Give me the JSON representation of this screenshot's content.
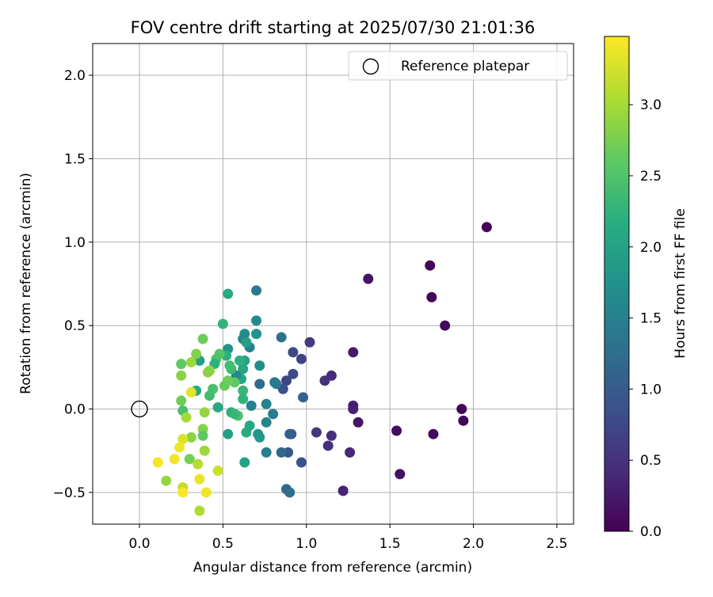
{
  "chart_data": {
    "type": "scatter",
    "title": "FOV centre drift starting at 2025/07/30 21:01:36",
    "xlabel": "Angular distance from reference (arcmin)",
    "ylabel": "Rotation from reference (arcmin)",
    "xlim": [
      -0.28,
      2.6
    ],
    "ylim": [
      -0.69,
      2.19
    ],
    "xticks": [
      0.0,
      0.5,
      1.0,
      1.5,
      2.0,
      2.5
    ],
    "xtick_labels": [
      "0.0",
      "0.5",
      "1.0",
      "1.5",
      "2.0",
      "2.5"
    ],
    "yticks": [
      -0.5,
      0.0,
      0.5,
      1.0,
      1.5,
      2.0
    ],
    "ytick_labels": [
      "−0.5",
      "0.0",
      "0.5",
      "1.0",
      "1.5",
      "2.0"
    ],
    "grid": true,
    "legend": {
      "position": "top-right",
      "entries": [
        {
          "label": "Reference platepar",
          "marker": "open-circle",
          "color": "#000000"
        }
      ]
    },
    "reference_point": {
      "x": 0.0,
      "y": 0.0
    },
    "colorbar": {
      "label": "Hours from first FF file",
      "colormap": "viridis",
      "range": [
        0.0,
        3.48
      ],
      "ticks": [
        0.0,
        0.5,
        1.0,
        1.5,
        2.0,
        2.5,
        3.0
      ],
      "tick_labels": [
        "0.0",
        "0.5",
        "1.0",
        "1.5",
        "2.0",
        "2.5",
        "3.0"
      ]
    },
    "series": [
      {
        "name": "Reference platepar",
        "x": [
          0.0
        ],
        "y": [
          0.0
        ]
      }
    ],
    "points": [
      {
        "x": 2.08,
        "y": 1.09,
        "c": 0.02
      },
      {
        "x": 1.74,
        "y": 0.86,
        "c": 0.05
      },
      {
        "x": 1.75,
        "y": 0.67,
        "c": 0.07
      },
      {
        "x": 1.83,
        "y": 0.5,
        "c": 0.08
      },
      {
        "x": 1.93,
        "y": 0.0,
        "c": 0.03
      },
      {
        "x": 1.94,
        "y": -0.07,
        "c": 0.06
      },
      {
        "x": 1.76,
        "y": -0.15,
        "c": 0.1
      },
      {
        "x": 1.54,
        "y": -0.13,
        "c": 0.12
      },
      {
        "x": 1.56,
        "y": -0.39,
        "c": 0.15
      },
      {
        "x": 1.37,
        "y": 0.78,
        "c": 0.18
      },
      {
        "x": 1.31,
        "y": -0.08,
        "c": 0.2
      },
      {
        "x": 1.28,
        "y": 0.34,
        "c": 0.25
      },
      {
        "x": 1.28,
        "y": 0.02,
        "c": 0.3
      },
      {
        "x": 1.28,
        "y": 0.0,
        "c": 0.33
      },
      {
        "x": 1.26,
        "y": -0.26,
        "c": 0.4
      },
      {
        "x": 1.22,
        "y": -0.49,
        "c": 0.35
      },
      {
        "x": 1.15,
        "y": 0.2,
        "c": 0.42
      },
      {
        "x": 1.11,
        "y": 0.17,
        "c": 0.5
      },
      {
        "x": 1.15,
        "y": -0.16,
        "c": 0.45
      },
      {
        "x": 1.13,
        "y": -0.22,
        "c": 0.48
      },
      {
        "x": 1.06,
        "y": -0.14,
        "c": 0.55
      },
      {
        "x": 1.02,
        "y": 0.4,
        "c": 0.6
      },
      {
        "x": 0.97,
        "y": 0.3,
        "c": 0.7
      },
      {
        "x": 0.92,
        "y": 0.34,
        "c": 0.75
      },
      {
        "x": 0.92,
        "y": 0.21,
        "c": 0.8
      },
      {
        "x": 0.88,
        "y": 0.17,
        "c": 0.72
      },
      {
        "x": 0.86,
        "y": 0.12,
        "c": 0.85
      },
      {
        "x": 0.98,
        "y": 0.07,
        "c": 1.1
      },
      {
        "x": 0.97,
        "y": -0.32,
        "c": 0.9
      },
      {
        "x": 0.91,
        "y": -0.15,
        "c": 1.0
      },
      {
        "x": 0.9,
        "y": -0.15,
        "c": 1.05
      },
      {
        "x": 0.89,
        "y": -0.26,
        "c": 0.95
      },
      {
        "x": 0.85,
        "y": -0.26,
        "c": 1.15
      },
      {
        "x": 0.88,
        "y": -0.48,
        "c": 1.2
      },
      {
        "x": 0.9,
        "y": -0.5,
        "c": 1.25
      },
      {
        "x": 0.85,
        "y": 0.43,
        "c": 1.3
      },
      {
        "x": 0.81,
        "y": 0.16,
        "c": 1.35
      },
      {
        "x": 0.82,
        "y": 0.15,
        "c": 1.4
      },
      {
        "x": 0.8,
        "y": -0.03,
        "c": 1.45
      },
      {
        "x": 0.76,
        "y": 0.03,
        "c": 1.55
      },
      {
        "x": 0.76,
        "y": -0.26,
        "c": 1.5
      },
      {
        "x": 0.76,
        "y": -0.08,
        "c": 1.6
      },
      {
        "x": 0.72,
        "y": 0.15,
        "c": 1.2
      },
      {
        "x": 0.72,
        "y": 0.26,
        "c": 1.7
      },
      {
        "x": 0.7,
        "y": 0.53,
        "c": 1.65
      },
      {
        "x": 0.7,
        "y": 0.71,
        "c": 1.4
      },
      {
        "x": 0.7,
        "y": 0.45,
        "c": 1.75
      },
      {
        "x": 0.71,
        "y": -0.15,
        "c": 1.8
      },
      {
        "x": 0.72,
        "y": -0.17,
        "c": 1.85
      },
      {
        "x": 0.67,
        "y": 0.02,
        "c": 1.5
      },
      {
        "x": 0.66,
        "y": 0.37,
        "c": 1.55
      },
      {
        "x": 0.63,
        "y": 0.45,
        "c": 1.7
      },
      {
        "x": 0.62,
        "y": 0.42,
        "c": 1.6
      },
      {
        "x": 0.64,
        "y": 0.4,
        "c": 1.9
      },
      {
        "x": 0.63,
        "y": 0.29,
        "c": 2.0
      },
      {
        "x": 0.62,
        "y": 0.24,
        "c": 2.05
      },
      {
        "x": 0.61,
        "y": 0.18,
        "c": 2.1
      },
      {
        "x": 0.6,
        "y": 0.29,
        "c": 2.2
      },
      {
        "x": 0.62,
        "y": 0.11,
        "c": 2.3
      },
      {
        "x": 0.62,
        "y": 0.06,
        "c": 2.25
      },
      {
        "x": 0.64,
        "y": -0.14,
        "c": 2.15
      },
      {
        "x": 0.66,
        "y": -0.1,
        "c": 2.1
      },
      {
        "x": 0.63,
        "y": -0.32,
        "c": 2.0
      },
      {
        "x": 0.58,
        "y": 0.2,
        "c": 1.6
      },
      {
        "x": 0.57,
        "y": 0.16,
        "c": 2.6
      },
      {
        "x": 0.59,
        "y": -0.04,
        "c": 2.5
      },
      {
        "x": 0.55,
        "y": 0.24,
        "c": 2.35
      },
      {
        "x": 0.54,
        "y": 0.26,
        "c": 2.4
      },
      {
        "x": 0.53,
        "y": 0.36,
        "c": 1.8
      },
      {
        "x": 0.52,
        "y": 0.32,
        "c": 2.2
      },
      {
        "x": 0.53,
        "y": 0.69,
        "c": 2.1
      },
      {
        "x": 0.5,
        "y": 0.51,
        "c": 2.25
      },
      {
        "x": 0.53,
        "y": 0.17,
        "c": 2.7
      },
      {
        "x": 0.51,
        "y": 0.14,
        "c": 2.65
      },
      {
        "x": 0.53,
        "y": -0.15,
        "c": 2.0
      },
      {
        "x": 0.55,
        "y": -0.02,
        "c": 2.2
      },
      {
        "x": 0.57,
        "y": -0.03,
        "c": 2.3
      },
      {
        "x": 0.48,
        "y": 0.33,
        "c": 2.55
      },
      {
        "x": 0.46,
        "y": 0.3,
        "c": 2.5
      },
      {
        "x": 0.45,
        "y": 0.27,
        "c": 2.2
      },
      {
        "x": 0.44,
        "y": 0.12,
        "c": 2.45
      },
      {
        "x": 0.42,
        "y": 0.23,
        "c": 2.9
      },
      {
        "x": 0.41,
        "y": 0.22,
        "c": 2.85
      },
      {
        "x": 0.42,
        "y": 0.08,
        "c": 2.4
      },
      {
        "x": 0.47,
        "y": 0.01,
        "c": 2.1
      },
      {
        "x": 0.38,
        "y": 0.42,
        "c": 2.7
      },
      {
        "x": 0.36,
        "y": 0.29,
        "c": 1.9
      },
      {
        "x": 0.34,
        "y": 0.33,
        "c": 2.8
      },
      {
        "x": 0.34,
        "y": 0.11,
        "c": 2.1
      },
      {
        "x": 0.31,
        "y": 0.28,
        "c": 2.95
      },
      {
        "x": 0.31,
        "y": 0.1,
        "c": 3.35
      },
      {
        "x": 0.25,
        "y": 0.27,
        "c": 2.6
      },
      {
        "x": 0.25,
        "y": 0.2,
        "c": 2.85
      },
      {
        "x": 0.25,
        "y": 0.05,
        "c": 2.7
      },
      {
        "x": 0.26,
        "y": -0.01,
        "c": 2.45
      },
      {
        "x": 0.28,
        "y": -0.05,
        "c": 3.0
      },
      {
        "x": 0.39,
        "y": -0.02,
        "c": 2.9
      },
      {
        "x": 0.38,
        "y": -0.12,
        "c": 2.8
      },
      {
        "x": 0.38,
        "y": -0.16,
        "c": 2.6
      },
      {
        "x": 0.31,
        "y": -0.17,
        "c": 2.85
      },
      {
        "x": 0.26,
        "y": -0.18,
        "c": 3.3
      },
      {
        "x": 0.24,
        "y": -0.23,
        "c": 3.4
      },
      {
        "x": 0.39,
        "y": -0.25,
        "c": 2.95
      },
      {
        "x": 0.3,
        "y": -0.3,
        "c": 2.75
      },
      {
        "x": 0.35,
        "y": -0.33,
        "c": 3.1
      },
      {
        "x": 0.21,
        "y": -0.3,
        "c": 3.42
      },
      {
        "x": 0.11,
        "y": -0.32,
        "c": 3.44
      },
      {
        "x": 0.47,
        "y": -0.37,
        "c": 3.2
      },
      {
        "x": 0.16,
        "y": -0.43,
        "c": 2.9
      },
      {
        "x": 0.36,
        "y": -0.42,
        "c": 3.38
      },
      {
        "x": 0.26,
        "y": -0.47,
        "c": 3.15
      },
      {
        "x": 0.4,
        "y": -0.5,
        "c": 3.41
      },
      {
        "x": 0.26,
        "y": -0.5,
        "c": 3.46
      },
      {
        "x": 0.36,
        "y": -0.61,
        "c": 3.05
      }
    ]
  }
}
